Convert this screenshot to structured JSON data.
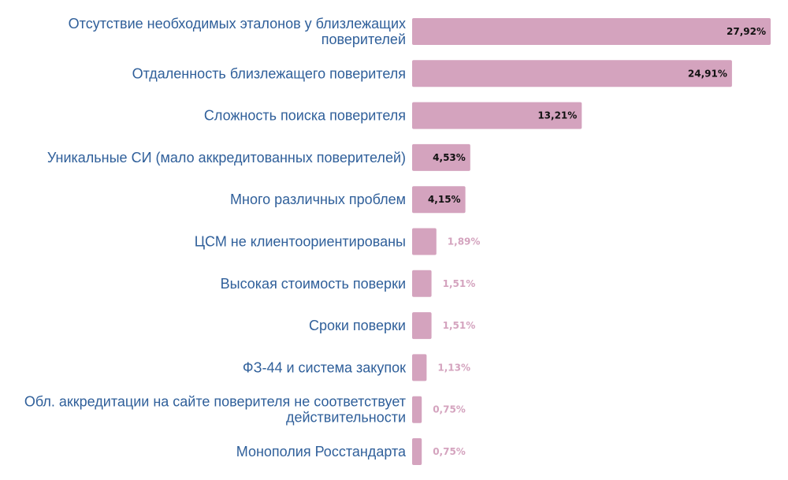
{
  "chart_data": {
    "type": "bar",
    "orientation": "horizontal",
    "categories": [
      [
        "Отсутствие необходимых эталонов у близлежащих",
        "поверителей"
      ],
      [
        "Отдаленность близлежащего поверителя"
      ],
      [
        "Сложность поиска поверителя"
      ],
      [
        "Уникальные СИ (мало аккредитованных поверителей)"
      ],
      [
        "Много различных проблем"
      ],
      [
        "ЦСМ не клиентоориентированы"
      ],
      [
        "Высокая стоимость поверки"
      ],
      [
        "Сроки поверки"
      ],
      [
        "ФЗ-44 и система закупок"
      ],
      [
        "Обл. аккредитации на сайте поверителя не соответствует",
        "действительности"
      ],
      [
        "Монополия Росстандарта"
      ]
    ],
    "values": [
      27.92,
      24.91,
      13.21,
      4.53,
      4.15,
      1.89,
      1.51,
      1.51,
      1.13,
      0.75,
      0.75
    ],
    "value_labels": [
      "27,92%",
      "24,91%",
      "13,21%",
      "4,53%",
      "4,15%",
      "1,89%",
      "1,51%",
      "1,51%",
      "1,13%",
      "0,75%",
      "0,75%"
    ],
    "xlim": [
      0,
      27.92
    ],
    "grid": false,
    "colors": {
      "bar": "#d4a3be",
      "category_text": "#2f5f9a",
      "value_inside": "#111111",
      "value_outside": "#d4a3be"
    }
  }
}
